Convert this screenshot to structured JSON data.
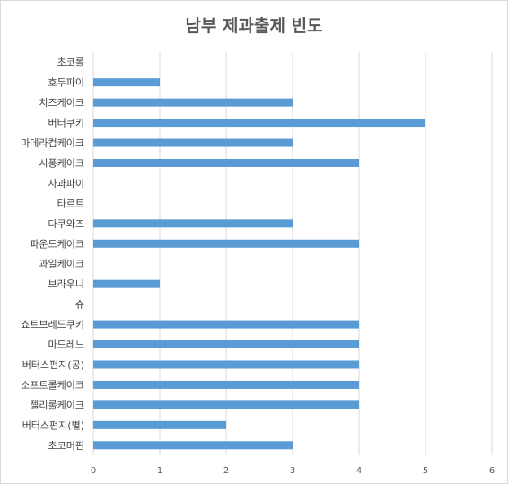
{
  "chart_data": {
    "type": "bar",
    "orientation": "horizontal",
    "title": "남부 제과출제 빈도",
    "xlabel": "",
    "ylabel": "",
    "categories": [
      "초코롤",
      "호두파이",
      "치즈케이크",
      "버터쿠키",
      "마데라컵케이크",
      "시퐁케이크",
      "사과파이",
      "타르트",
      "다쿠와즈",
      "파운드케이크",
      "과일케이크",
      "브라우니",
      "슈",
      "쇼트브레드쿠키",
      "마드레느",
      "버터스펀지(공)",
      "소프트롤케이크",
      "젤리롤케이크",
      "버터스펀지(별)",
      "초코머핀"
    ],
    "values": [
      0,
      1,
      3,
      5,
      3,
      4,
      0,
      0,
      3,
      4,
      0,
      1,
      0,
      4,
      4,
      4,
      4,
      4,
      2,
      3
    ],
    "xlim": [
      0,
      6
    ],
    "xticks": [
      "0",
      "1",
      "2",
      "3",
      "4",
      "5",
      "6"
    ],
    "grid": true,
    "legend": "none",
    "bar_color": "#5b9bd5",
    "grid_color": "#d9d9d9"
  }
}
